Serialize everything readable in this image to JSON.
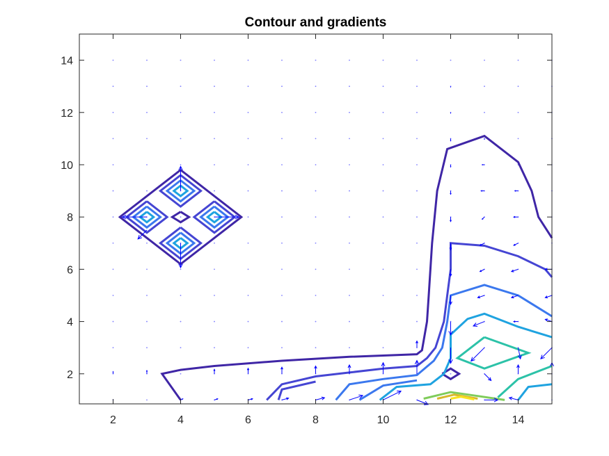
{
  "chart_data": {
    "type": "contour",
    "title": "Contour and gradients",
    "xlabel": "",
    "ylabel": "",
    "xlim": [
      1,
      15
    ],
    "ylim": [
      0.85,
      15
    ],
    "x_ticks": [
      2,
      4,
      6,
      8,
      10,
      12,
      14
    ],
    "y_ticks": [
      2,
      4,
      6,
      8,
      10,
      12,
      14
    ],
    "grid": false,
    "colormap": "parula",
    "level_colors": [
      "#3f26a6",
      "#4545d3",
      "#3b78ee",
      "#1fa3e0",
      "#2cc2a8",
      "#7fcc5a",
      "#d8b82b",
      "#f8e31f"
    ],
    "arrow_color": "#0000ff",
    "contours": [
      {
        "level": 0,
        "points": [
          [
            4,
            9.8
          ],
          [
            5.8,
            8
          ],
          [
            4,
            6.2
          ],
          [
            2.2,
            8
          ],
          [
            4,
            9.8
          ]
        ]
      },
      {
        "level": 0,
        "points": [
          [
            4,
            8.2
          ],
          [
            4.25,
            8
          ],
          [
            4,
            7.8
          ],
          [
            3.75,
            8
          ],
          [
            4,
            8.2
          ]
        ]
      },
      {
        "level": 1,
        "points": [
          [
            4,
            9.6
          ],
          [
            4.6,
            9
          ],
          [
            4,
            8.4
          ],
          [
            3.4,
            9
          ],
          [
            4,
            9.6
          ]
        ]
      },
      {
        "level": 2,
        "points": [
          [
            4,
            9.4
          ],
          [
            4.4,
            9
          ],
          [
            4,
            8.6
          ],
          [
            3.6,
            9
          ],
          [
            4,
            9.4
          ]
        ]
      },
      {
        "level": 3,
        "points": [
          [
            4,
            9.2
          ],
          [
            4.2,
            9
          ],
          [
            4,
            8.8
          ],
          [
            3.8,
            9
          ],
          [
            4,
            9.2
          ]
        ]
      },
      {
        "level": 1,
        "points": [
          [
            4,
            7.6
          ],
          [
            4.6,
            7
          ],
          [
            4,
            6.4
          ],
          [
            3.4,
            7
          ],
          [
            4,
            7.6
          ]
        ]
      },
      {
        "level": 2,
        "points": [
          [
            4,
            7.4
          ],
          [
            4.4,
            7
          ],
          [
            4,
            6.6
          ],
          [
            3.6,
            7
          ],
          [
            4,
            7.4
          ]
        ]
      },
      {
        "level": 3,
        "points": [
          [
            4,
            7.2
          ],
          [
            4.2,
            7
          ],
          [
            4,
            6.8
          ],
          [
            3.8,
            7
          ],
          [
            4,
            7.2
          ]
        ]
      },
      {
        "level": 1,
        "points": [
          [
            3,
            8.6
          ],
          [
            3.6,
            8
          ],
          [
            3,
            7.4
          ],
          [
            2.4,
            8
          ],
          [
            3,
            8.6
          ]
        ]
      },
      {
        "level": 2,
        "points": [
          [
            3,
            8.4
          ],
          [
            3.4,
            8
          ],
          [
            3,
            7.6
          ],
          [
            2.6,
            8
          ],
          [
            3,
            8.4
          ]
        ]
      },
      {
        "level": 3,
        "points": [
          [
            3,
            8.2
          ],
          [
            3.2,
            8
          ],
          [
            3,
            7.8
          ],
          [
            2.8,
            8
          ],
          [
            3,
            8.2
          ]
        ]
      },
      {
        "level": 1,
        "points": [
          [
            5,
            8.6
          ],
          [
            5.6,
            8
          ],
          [
            5,
            7.4
          ],
          [
            4.4,
            8
          ],
          [
            5,
            8.6
          ]
        ]
      },
      {
        "level": 2,
        "points": [
          [
            5,
            8.4
          ],
          [
            5.4,
            8
          ],
          [
            5,
            7.6
          ],
          [
            4.6,
            8
          ],
          [
            5,
            8.4
          ]
        ]
      },
      {
        "level": 3,
        "points": [
          [
            5,
            8.2
          ],
          [
            5.2,
            8
          ],
          [
            5,
            7.8
          ],
          [
            4.8,
            8
          ],
          [
            5,
            8.2
          ]
        ]
      },
      {
        "level": 0,
        "points": [
          [
            4,
            1
          ],
          [
            3.45,
            2
          ],
          [
            4,
            2.15
          ],
          [
            5,
            2.3
          ],
          [
            7,
            2.5
          ],
          [
            9,
            2.65
          ],
          [
            11,
            2.75
          ],
          [
            11.15,
            2.9
          ],
          [
            11.3,
            4
          ],
          [
            11.35,
            5
          ],
          [
            11.45,
            7
          ],
          [
            11.6,
            9
          ],
          [
            11.9,
            10.6
          ],
          [
            13,
            11.1
          ],
          [
            14,
            10.1
          ],
          [
            14.4,
            9
          ],
          [
            14.6,
            8
          ],
          [
            15,
            7.2
          ]
        ]
      },
      {
        "level": 0,
        "points": [
          [
            11.75,
            2
          ],
          [
            12,
            2.2
          ],
          [
            12.25,
            2
          ],
          [
            12,
            1.8
          ],
          [
            11.75,
            2
          ]
        ]
      },
      {
        "level": 1,
        "points": [
          [
            6.55,
            1
          ],
          [
            7,
            1.6
          ],
          [
            8,
            1.9
          ],
          [
            9,
            2.05
          ],
          [
            10,
            2.2
          ],
          [
            11,
            2.3
          ],
          [
            11.3,
            2.6
          ],
          [
            11.55,
            3
          ],
          [
            11.8,
            4
          ],
          [
            11.9,
            5
          ],
          [
            12,
            6
          ],
          [
            12,
            7
          ],
          [
            13,
            6.9
          ],
          [
            14,
            6.5
          ],
          [
            14.8,
            6
          ],
          [
            15,
            5.7
          ]
        ]
      },
      {
        "level": 1,
        "points": [
          [
            6.9,
            1
          ],
          [
            7,
            1.4
          ],
          [
            8,
            1.7
          ]
        ]
      },
      {
        "level": 2,
        "points": [
          [
            8.6,
            1
          ],
          [
            9,
            1.6
          ],
          [
            10,
            1.8
          ],
          [
            11,
            1.95
          ],
          [
            11.5,
            2.5
          ],
          [
            11.75,
            3
          ],
          [
            11.9,
            4
          ],
          [
            12,
            5
          ],
          [
            13,
            5.4
          ],
          [
            14,
            5
          ],
          [
            15,
            4.2
          ]
        ]
      },
      {
        "level": 2,
        "points": [
          [
            9.3,
            1
          ],
          [
            10,
            1.55
          ],
          [
            11,
            1.75
          ]
        ]
      },
      {
        "level": 3,
        "points": [
          [
            9.9,
            1
          ],
          [
            10.4,
            1.5
          ],
          [
            11.4,
            1.6
          ],
          [
            11.8,
            2
          ],
          [
            12,
            2.6
          ],
          [
            12,
            3.5
          ],
          [
            12.5,
            4.1
          ],
          [
            13,
            4.3
          ],
          [
            14,
            3.8
          ],
          [
            15,
            3.4
          ]
        ]
      },
      {
        "level": 3,
        "points": [
          [
            14,
            1
          ],
          [
            14.3,
            1.5
          ],
          [
            15,
            1.6
          ]
        ]
      },
      {
        "level": 4,
        "points": [
          [
            13,
            3.4
          ],
          [
            14.3,
            2.8
          ],
          [
            13,
            2.2
          ],
          [
            12.2,
            2.6
          ],
          [
            13,
            3.4
          ]
        ]
      },
      {
        "level": 4,
        "points": [
          [
            13.4,
            1.1
          ],
          [
            14,
            1.8
          ],
          [
            15,
            2.3
          ]
        ]
      },
      {
        "level": 5,
        "points": [
          [
            11.2,
            1.05
          ],
          [
            12,
            1.3
          ],
          [
            12.8,
            1.15
          ],
          [
            13.6,
            1.0
          ]
        ]
      },
      {
        "level": 6,
        "points": [
          [
            11.6,
            1.05
          ],
          [
            12.1,
            1.2
          ],
          [
            12.8,
            1.05
          ]
        ]
      },
      {
        "level": 7,
        "points": [
          [
            12,
            1.05
          ],
          [
            12.3,
            1.12
          ],
          [
            12.7,
            1.02
          ]
        ]
      }
    ],
    "gradient_grid": {
      "x": [
        2,
        3,
        4,
        5,
        6,
        7,
        8,
        9,
        10,
        11,
        12,
        13,
        14,
        15
      ],
      "y": [
        1,
        2,
        3,
        4,
        5,
        6,
        7,
        8,
        9,
        10,
        11,
        12,
        13,
        14
      ],
      "vectors": [
        {
          "x": 4,
          "y": 9,
          "u": 0,
          "v": 1.1
        },
        {
          "x": 4,
          "y": 7,
          "u": 0,
          "v": -1.1
        },
        {
          "x": 3,
          "y": 8,
          "u": -1.1,
          "v": 0
        },
        {
          "x": 5,
          "y": 8,
          "u": 1.1,
          "v": 0
        },
        {
          "x": 3,
          "y": 7.5,
          "u": -0.4,
          "v": -0.4
        },
        {
          "x": 4,
          "y": 1,
          "u": 0.1,
          "v": 0.05
        },
        {
          "x": 5,
          "y": 1,
          "u": 0.15,
          "v": 0.05
        },
        {
          "x": 6,
          "y": 1,
          "u": 0.2,
          "v": 0.05
        },
        {
          "x": 7,
          "y": 1,
          "u": 0.3,
          "v": 0.08
        },
        {
          "x": 8,
          "y": 1,
          "u": 0.4,
          "v": 0.1
        },
        {
          "x": 9,
          "y": 1,
          "u": 0.6,
          "v": 0.2
        },
        {
          "x": 10,
          "y": 1,
          "u": 0.8,
          "v": 0.4
        },
        {
          "x": 11,
          "y": 1,
          "u": 0.5,
          "v": -0.2
        },
        {
          "x": 13,
          "y": 1,
          "u": 0.6,
          "v": 0
        },
        {
          "x": 14,
          "y": 1,
          "u": -0.4,
          "v": 0.1
        },
        {
          "x": 2,
          "y": 2,
          "u": 0,
          "v": 0.1
        },
        {
          "x": 3,
          "y": 2,
          "u": 0,
          "v": 0.15
        },
        {
          "x": 5,
          "y": 2,
          "u": 0,
          "v": 0.2
        },
        {
          "x": 6,
          "y": 2,
          "u": 0,
          "v": 0.25
        },
        {
          "x": 7,
          "y": 2,
          "u": 0,
          "v": 0.3
        },
        {
          "x": 8,
          "y": 2,
          "u": 0,
          "v": 0.35
        },
        {
          "x": 9,
          "y": 2,
          "u": 0,
          "v": 0.4
        },
        {
          "x": 10,
          "y": 2,
          "u": 0,
          "v": 0.5
        },
        {
          "x": 11,
          "y": 2,
          "u": 0,
          "v": 0.6
        },
        {
          "x": 13,
          "y": 2,
          "u": 0.3,
          "v": -0.3
        },
        {
          "x": 14,
          "y": 2,
          "u": 0,
          "v": 0.4
        },
        {
          "x": 15,
          "y": 2,
          "u": 0,
          "v": 0.5
        },
        {
          "x": 11,
          "y": 3,
          "u": 0,
          "v": 0.3
        },
        {
          "x": 12,
          "y": 3,
          "u": 0,
          "v": -0.7
        },
        {
          "x": 13,
          "y": 3,
          "u": -0.6,
          "v": -0.6
        },
        {
          "x": 14,
          "y": 3,
          "u": 0.1,
          "v": -0.5
        },
        {
          "x": 15,
          "y": 3,
          "u": -0.5,
          "v": -0.5
        },
        {
          "x": 12,
          "y": 4,
          "u": 0,
          "v": -0.6
        },
        {
          "x": 13,
          "y": 4,
          "u": -0.5,
          "v": -0.2
        },
        {
          "x": 14,
          "y": 4,
          "u": -0.2,
          "v": 0
        },
        {
          "x": 15,
          "y": 4,
          "u": -0.3,
          "v": 0.1
        },
        {
          "x": 12,
          "y": 5,
          "u": 0,
          "v": -0.4
        },
        {
          "x": 13,
          "y": 5,
          "u": -0.3,
          "v": -0.1
        },
        {
          "x": 14,
          "y": 5,
          "u": -0.3,
          "v": -0.1
        },
        {
          "x": 15,
          "y": 5,
          "u": -0.3,
          "v": -0.1
        },
        {
          "x": 12,
          "y": 6,
          "u": 0,
          "v": -0.3
        },
        {
          "x": 13,
          "y": 6,
          "u": -0.2,
          "v": -0.1
        },
        {
          "x": 14,
          "y": 6,
          "u": -0.3,
          "v": -0.1
        },
        {
          "x": 15,
          "y": 6,
          "u": -0.3,
          "v": 0
        },
        {
          "x": 12,
          "y": 7,
          "u": 0,
          "v": -0.3
        },
        {
          "x": 13,
          "y": 7,
          "u": -0.2,
          "v": -0.1
        },
        {
          "x": 14,
          "y": 7,
          "u": -0.2,
          "v": -0.1
        },
        {
          "x": 12,
          "y": 8,
          "u": 0,
          "v": -0.2
        },
        {
          "x": 13,
          "y": 8,
          "u": -0.1,
          "v": -0.1
        },
        {
          "x": 14,
          "y": 8,
          "u": -0.2,
          "v": 0
        },
        {
          "x": 12,
          "y": 9,
          "u": 0,
          "v": -0.15
        },
        {
          "x": 13,
          "y": 9,
          "u": -0.15,
          "v": 0
        },
        {
          "x": 14,
          "y": 9,
          "u": -0.15,
          "v": 0
        },
        {
          "x": 12,
          "y": 10,
          "u": 0,
          "v": -0.1
        },
        {
          "x": 13,
          "y": 10,
          "u": -0.1,
          "v": 0
        },
        {
          "x": 12,
          "y": 11,
          "u": 0,
          "v": -0.1
        },
        {
          "x": 13,
          "y": 11,
          "u": 0,
          "v": -0.05
        },
        {
          "x": 12,
          "y": 12,
          "u": 0,
          "v": -0.05
        },
        {
          "x": 12,
          "y": 13,
          "u": 0,
          "v": -0.05
        }
      ]
    }
  }
}
